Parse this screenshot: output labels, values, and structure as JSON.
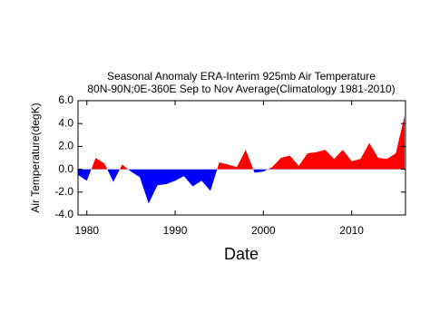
{
  "chart_data": {
    "type": "area",
    "title": "Seasonal Anomaly ERA-Interim 925mb  Air Temperature",
    "subtitle": "80N-90N;0E-360E Sep to Nov Average(Climatology 1981-2010)",
    "x_label": "Date",
    "y_label": "Air Temperature(degK)",
    "x": [
      1979,
      1980,
      1981,
      1982,
      1983,
      1984,
      1985,
      1986,
      1987,
      1988,
      1989,
      1990,
      1991,
      1992,
      1993,
      1994,
      1995,
      1996,
      1997,
      1998,
      1999,
      2000,
      2001,
      2002,
      2003,
      2004,
      2005,
      2006,
      2007,
      2008,
      2009,
      2010,
      2011,
      2012,
      2013,
      2014,
      2015,
      2016
    ],
    "values": [
      -0.5,
      -1.0,
      1.0,
      0.5,
      -1.1,
      0.4,
      -0.2,
      -0.7,
      -3.0,
      -1.4,
      -1.3,
      -1.0,
      -0.6,
      -1.5,
      -1.0,
      -1.9,
      0.6,
      0.4,
      0.2,
      1.7,
      -0.3,
      -0.2,
      0.2,
      1.0,
      1.2,
      0.3,
      1.4,
      1.5,
      1.7,
      0.9,
      1.7,
      0.7,
      0.9,
      2.3,
      1.0,
      0.9,
      1.4,
      4.7
    ],
    "pos_color": "#ff0000",
    "neg_color": "#0000ff",
    "xlim": [
      1979,
      2016.1
    ],
    "xticks": [
      1980,
      1990,
      2000,
      2010
    ],
    "ylim": [
      -4,
      6
    ],
    "yticks": [
      {
        "value": 6,
        "label": "6.0"
      },
      {
        "value": 4,
        "label": "4.0"
      },
      {
        "value": 2,
        "label": "2.0"
      },
      {
        "value": 0,
        "label": "0.0"
      },
      {
        "value": -2,
        "label": "-2.0"
      },
      {
        "value": -4,
        "label": "-4.0"
      }
    ]
  }
}
